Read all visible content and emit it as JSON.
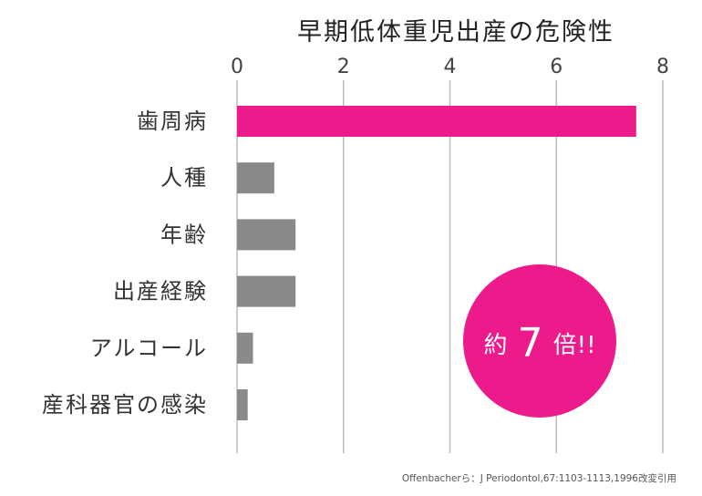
{
  "colors": {
    "highlight": "#ec1a8a",
    "bar": "#8a8a8a",
    "grid": "#bbbbbb"
  },
  "chart_data": {
    "type": "bar",
    "orientation": "horizontal",
    "title": "早期低体重児出産の危険性",
    "xlim": [
      0,
      8
    ],
    "xticks": [
      0,
      2,
      4,
      6,
      8
    ],
    "x_axis_position": "top",
    "grid": true,
    "categories": [
      "歯周病",
      "人種",
      "年齢",
      "出産経験",
      "アルコール",
      "産科器官の感染"
    ],
    "values": [
      7.5,
      0.7,
      1.1,
      1.1,
      0.3,
      0.2
    ],
    "highlight_index": 0
  },
  "badge": {
    "prefix": "約",
    "number": "7",
    "suffix": "倍!!"
  },
  "source": "Offenbacherら：J Periodontol,67:1103-1113,1996改変引用"
}
